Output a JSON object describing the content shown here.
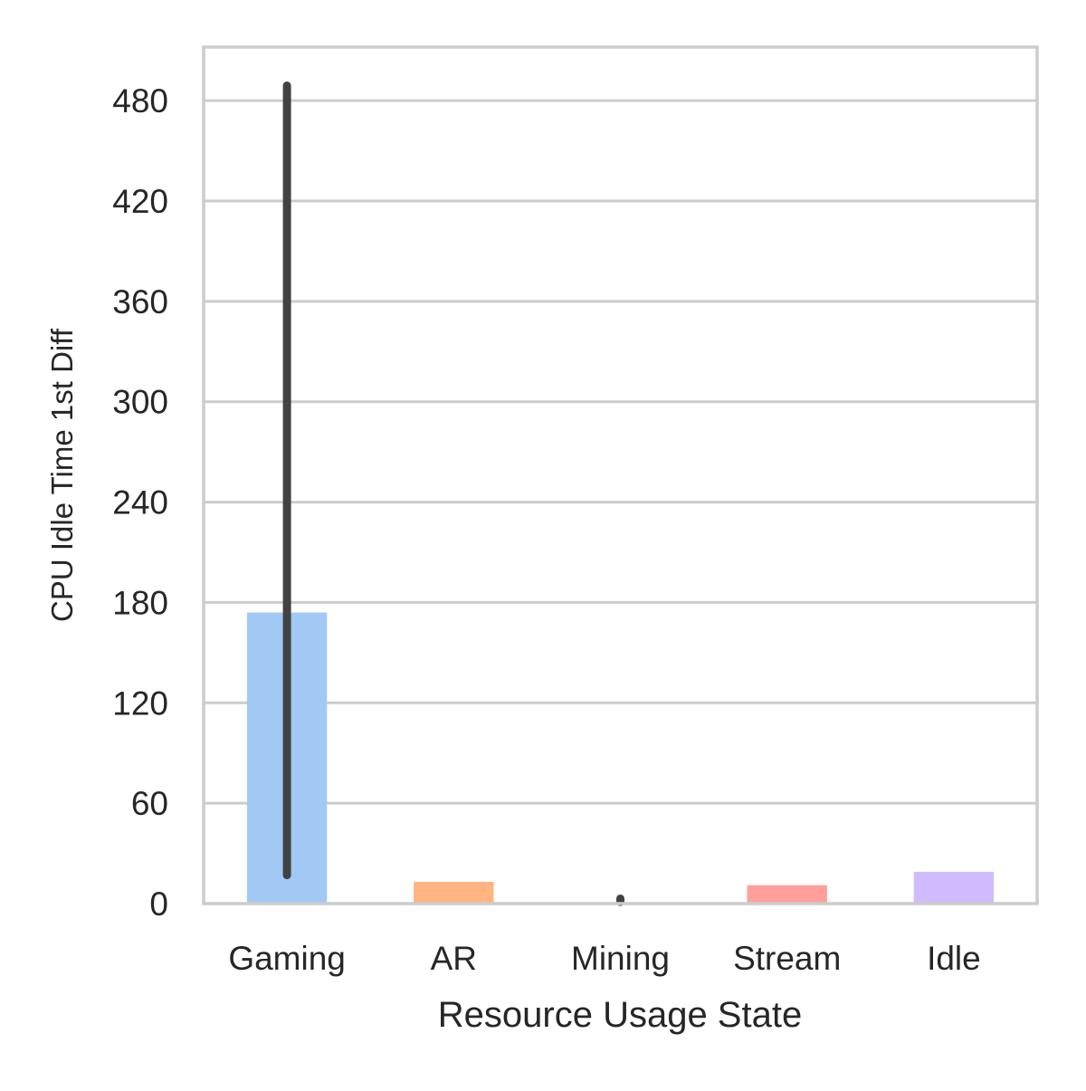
{
  "chart_data": {
    "type": "bar",
    "title": "",
    "xlabel": "Resource Usage State",
    "ylabel": "CPU Idle Time 1st Diff",
    "categories": [
      "Gaming",
      "AR",
      "Mining",
      "Stream",
      "Idle"
    ],
    "values": [
      174,
      13,
      0,
      11,
      19
    ],
    "error_bars": [
      {
        "low": 17,
        "high": 489
      },
      null,
      {
        "low": 1,
        "high": 3
      },
      null,
      null
    ],
    "colors": [
      "#a1c9f4",
      "#ffb482",
      "#8de5a1",
      "#ff9f9b",
      "#d0bbff"
    ],
    "ylim": [
      0,
      512
    ],
    "yticks": [
      0,
      60,
      120,
      180,
      240,
      300,
      360,
      420,
      480
    ],
    "ytick_labels": [
      "0",
      "60",
      "120",
      "180",
      "240",
      "300",
      "360",
      "420",
      "480"
    ],
    "grid": true,
    "legend": "none"
  }
}
